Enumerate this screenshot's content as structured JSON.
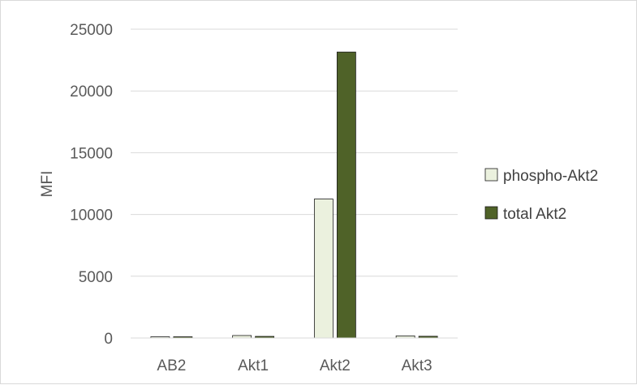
{
  "chart_data": {
    "type": "bar",
    "title": "",
    "xlabel": "",
    "ylabel": "MFI",
    "categories": [
      "AB2",
      "Akt1",
      "Akt2",
      "Akt3"
    ],
    "ylim": [
      0,
      25000
    ],
    "yticks": [
      0,
      5000,
      10000,
      15000,
      20000,
      25000
    ],
    "grid": true,
    "legend_position": "right",
    "series": [
      {
        "name": "phospho-Akt2",
        "values": [
          60,
          200,
          11250,
          170
        ],
        "color": "#ebf1de"
      },
      {
        "name": "total Akt2",
        "values": [
          50,
          130,
          23150,
          140
        ],
        "color": "#4f6228"
      }
    ]
  }
}
